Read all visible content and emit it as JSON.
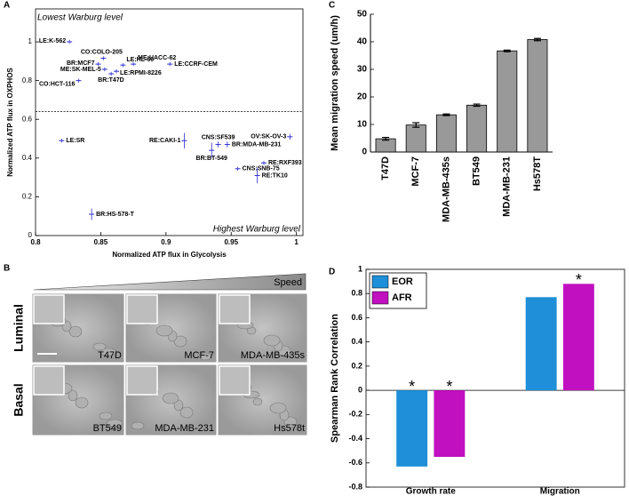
{
  "panel_labels": [
    "A",
    "B",
    "C",
    "D"
  ],
  "micrographs": {
    "gradient_label": "Speed",
    "rows": [
      {
        "label": "Luminal",
        "cells": [
          "T47D",
          "MCF-7",
          "MDA-MB-435s"
        ]
      },
      {
        "label": "Basal",
        "cells": [
          "BT549",
          "MDA-MB-231",
          "Hs578t"
        ]
      }
    ]
  },
  "chart_data": [
    {
      "type": "scatter",
      "xlabel": "Normalized ATP flux in Glycolysis",
      "ylabel": "Normalized ATP flux in OXPHOS",
      "labels": [
        "LE:K-562",
        "CO:COLO-205",
        "ME:UACC-62",
        "BR:MCF7",
        "LE:HL-60",
        "LE:CCRF-CEM",
        "ME:SK-MEL-5",
        "BR:T47D",
        "LE:RPMI-8226",
        "CO:HCT-116",
        "LE:SR",
        "RE:CAKI-1",
        "CNS:SF539",
        "BR:MDA-MB-231",
        "BR:BT-549",
        "OV:SK-OV-3",
        "CNS:SNB-75",
        "RE:RXF393",
        "RE:TK10",
        "BR:HS-578-T"
      ],
      "x": [
        0.826,
        0.852,
        0.875,
        0.848,
        0.867,
        0.903,
        0.853,
        0.858,
        0.862,
        0.833,
        0.82,
        0.914,
        0.94,
        0.947,
        0.935,
        0.995,
        0.955,
        0.975,
        0.97,
        0.843
      ],
      "y": [
        1.0,
        0.915,
        0.885,
        0.885,
        0.88,
        0.885,
        0.858,
        0.835,
        0.848,
        0.8,
        0.49,
        0.49,
        0.47,
        0.47,
        0.44,
        0.51,
        0.345,
        0.375,
        0.31,
        0.11
      ],
      "yerr": [
        0.01,
        0.01,
        0.01,
        0.01,
        0.01,
        0.01,
        0.01,
        0.01,
        0.01,
        0.01,
        0.01,
        0.04,
        0.015,
        0.015,
        0.04,
        0.015,
        0.01,
        0.01,
        0.04,
        0.03
      ],
      "label_colors": [
        "#000000",
        "#000000",
        "#000000",
        "#2a9a2a",
        "#000000",
        "#000000",
        "#000000",
        "#2a9a2a",
        "#000000",
        "#000000",
        "#000000",
        "#000000",
        "#000000",
        "#e0901e",
        "#e0901e",
        "#000000",
        "#000000",
        "#000000",
        "#000000",
        "#e0901e"
      ],
      "color": "#2b2bd1",
      "xlim": [
        0.8,
        1.005
      ],
      "ylim": [
        0,
        1.17
      ],
      "xticks": [
        0.8,
        0.85,
        0.9,
        0.95,
        1
      ],
      "yticks": [
        0,
        0.2,
        0.4,
        0.6,
        0.8,
        1
      ],
      "reference_line": 0.64,
      "annotations": [
        "Lowest Warburg level",
        "Highest Warburg level"
      ],
      "annotation_color": "#1a2a8a"
    },
    {
      "type": "bar",
      "ylabel": "Mean migration speed (um/h)",
      "categories": [
        "T47D",
        "MCF-7",
        "MDA-MB-435s",
        "BT549",
        "MDA-MB-231",
        "Hs578T"
      ],
      "values": [
        4.8,
        9.8,
        13.5,
        17,
        36.7,
        40.8
      ],
      "errors": [
        0.5,
        0.8,
        0.3,
        0.4,
        0.3,
        0.4
      ],
      "color": "#999999",
      "ylim": [
        0,
        50
      ],
      "yticks": [
        0,
        10,
        20,
        30,
        40,
        50
      ]
    },
    {
      "type": "bar",
      "ylabel": "Spearman Rank Correlation",
      "categories": [
        "Growth rate",
        "Migration"
      ],
      "series": [
        {
          "name": "EOR",
          "color": "#1e8fd8",
          "values": [
            -0.63,
            0.77
          ],
          "significance": [
            "*",
            null
          ]
        },
        {
          "name": "AFR",
          "color": "#c010c0",
          "values": [
            -0.55,
            0.88
          ],
          "significance": [
            "*",
            "*"
          ]
        }
      ],
      "ylim": [
        -0.8,
        1
      ],
      "yticks": [
        -0.8,
        -0.6,
        -0.4,
        -0.2,
        0,
        0.2,
        0.4,
        0.6,
        0.8,
        1
      ],
      "legend": "upper left"
    }
  ]
}
